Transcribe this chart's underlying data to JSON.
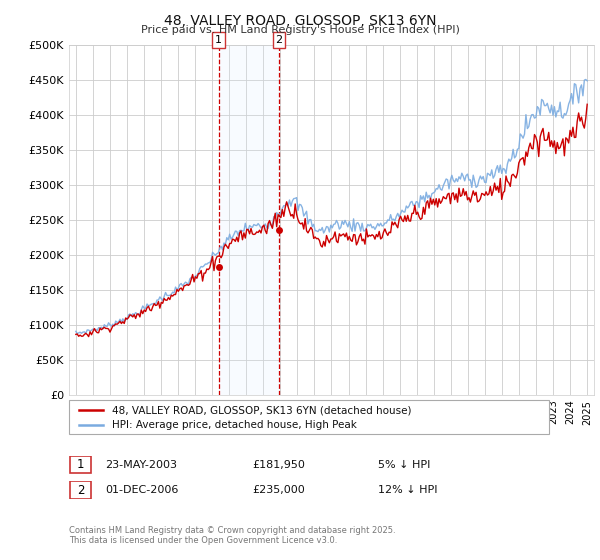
{
  "title": "48, VALLEY ROAD, GLOSSOP, SK13 6YN",
  "subtitle": "Price paid vs. HM Land Registry's House Price Index (HPI)",
  "legend_line1": "48, VALLEY ROAD, GLOSSOP, SK13 6YN (detached house)",
  "legend_line2": "HPI: Average price, detached house, High Peak",
  "footer_line1": "Contains HM Land Registry data © Crown copyright and database right 2025.",
  "footer_line2": "This data is licensed under the Open Government Licence v3.0.",
  "transaction1_label": "1",
  "transaction1_date": "23-MAY-2003",
  "transaction1_price": "£181,950",
  "transaction1_hpi": "5% ↓ HPI",
  "transaction1_year": 2003.38,
  "transaction2_label": "2",
  "transaction2_date": "01-DEC-2006",
  "transaction2_price": "£235,000",
  "transaction2_hpi": "12% ↓ HPI",
  "transaction2_year": 2006.92,
  "ylim": [
    0,
    500000
  ],
  "yticks": [
    0,
    50000,
    100000,
    150000,
    200000,
    250000,
    300000,
    350000,
    400000,
    450000,
    500000
  ],
  "price_color": "#cc0000",
  "hpi_color": "#7aabe0",
  "vline_color": "#cc0000",
  "background_color": "#ffffff",
  "grid_color": "#cccccc",
  "shade_color": "#ddeeff"
}
